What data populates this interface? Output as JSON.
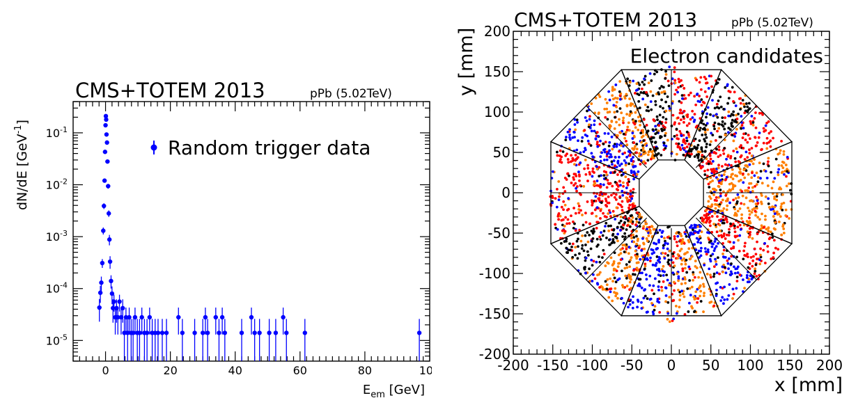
{
  "chart_data": [
    {
      "type": "scatter",
      "title": "CMS+TOTEM 2013",
      "subtitle": "pPb (5.02TeV)",
      "xlabel": "E_em [GeV]",
      "xlabel_main": "E",
      "xlabel_sub": "em",
      "xlabel_tail": " [GeV]",
      "ylabel": "dN/dE [GeV^-1]",
      "ylabel_main": "dN/dE [GeV",
      "ylabel_sup": "-1",
      "ylabel_tail": "]",
      "yscale": "log",
      "xlim": [
        -10,
        100
      ],
      "ylim": [
        4e-06,
        0.4
      ],
      "x_ticks": [
        0,
        20,
        40,
        60,
        80,
        100
      ],
      "x_tick_labels": [
        "0",
        "20",
        "40",
        "60",
        "80",
        "100"
      ],
      "y_ticks": [
        1e-05,
        0.0001,
        0.001,
        0.01,
        0.1
      ],
      "y_tick_base": "10",
      "y_tick_exps": [
        "-5",
        "-4",
        "-3",
        "-2",
        "-1"
      ],
      "legend": {
        "entries": [
          "Random trigger data"
        ],
        "position": "top-right"
      },
      "series": [
        {
          "name": "Random trigger data",
          "color": "#0000ff",
          "points": [
            [
              -1.9,
              4.3e-05,
              2e-05
            ],
            [
              -1.6,
              8.3e-05,
              3e-05
            ],
            [
              -1.3,
              0.00013,
              4e-05
            ],
            [
              -1.0,
              0.00031,
              6e-05
            ],
            [
              -0.7,
              0.0013,
              0.0002
            ],
            [
              -0.5,
              0.0039,
              0.0005
            ],
            [
              -0.3,
              0.012,
              0.001
            ],
            [
              -0.15,
              0.043,
              0.002
            ],
            [
              0.0,
              0.14,
              0.004
            ],
            [
              0.1,
              0.21,
              0.005
            ],
            [
              0.2,
              0.18,
              0.005
            ],
            [
              0.3,
              0.093,
              0.003
            ],
            [
              0.45,
              0.065,
              0.003
            ],
            [
              0.6,
              0.028,
              0.002
            ],
            [
              0.8,
              0.0094,
              0.001
            ],
            [
              1.0,
              0.0028,
              0.0004
            ],
            [
              1.2,
              0.00088,
              0.0002
            ],
            [
              1.4,
              0.00033,
              9e-05
            ],
            [
              1.7,
              0.00014,
              4e-05
            ],
            [
              2.0,
              8e-05,
              3e-05
            ],
            [
              2.3,
              4.2e-05,
              2e-05
            ],
            [
              2.6,
              5.6e-05,
              2e-05
            ],
            [
              3.0,
              2.8e-05,
              1.5e-05
            ],
            [
              3.4,
              4.2e-05,
              2e-05
            ],
            [
              3.8,
              2.8e-05,
              1.5e-05
            ],
            [
              4.3,
              5.6e-05,
              2e-05
            ],
            [
              4.8,
              2.8e-05,
              1.5e-05
            ],
            [
              5.3,
              4.2e-05,
              2e-05
            ],
            [
              5.8,
              1.4e-05,
              1.2e-05
            ],
            [
              6.3,
              2.8e-05,
              1.5e-05
            ],
            [
              6.8,
              1.4e-05,
              1.2e-05
            ],
            [
              7.3,
              2.8e-05,
              1.5e-05
            ],
            [
              7.9,
              1.4e-05,
              1.2e-05
            ],
            [
              8.5,
              1.4e-05,
              1.2e-05
            ],
            [
              9.1,
              2.8e-05,
              1.5e-05
            ],
            [
              9.8,
              1.4e-05,
              1.2e-05
            ],
            [
              10.5,
              1.4e-05,
              1.2e-05
            ],
            [
              11.2,
              2.8e-05,
              1.5e-05
            ],
            [
              12.0,
              1.4e-05,
              1.2e-05
            ],
            [
              12.8,
              1.4e-05,
              1.2e-05
            ],
            [
              13.6,
              2.8e-05,
              1.5e-05
            ],
            [
              14.4,
              1.4e-05,
              1.2e-05
            ],
            [
              15.3,
              1.4e-05,
              1.2e-05
            ],
            [
              16.2,
              1.4e-05,
              1.2e-05
            ],
            [
              17.5,
              1.4e-05,
              1.2e-05
            ],
            [
              18.8,
              1.4e-05,
              1.2e-05
            ],
            [
              22.5,
              2.8e-05,
              1.5e-05
            ],
            [
              23.7,
              1.4e-05,
              1.2e-05
            ],
            [
              27.5,
              1.4e-05,
              1.2e-05
            ],
            [
              30.0,
              1.4e-05,
              1.2e-05
            ],
            [
              30.8,
              2.8e-05,
              1.5e-05
            ],
            [
              31.5,
              1.4e-05,
              1.2e-05
            ],
            [
              34.0,
              2.8e-05,
              1.5e-05
            ],
            [
              35.0,
              1.4e-05,
              1.2e-05
            ],
            [
              36.0,
              2.8e-05,
              1.5e-05
            ],
            [
              36.8,
              1.4e-05,
              1.2e-05
            ],
            [
              42.0,
              1.4e-05,
              1.2e-05
            ],
            [
              45.0,
              2.8e-05,
              1.5e-05
            ],
            [
              46.0,
              1.4e-05,
              1.2e-05
            ],
            [
              47.5,
              1.4e-05,
              1.2e-05
            ],
            [
              50.5,
              1.4e-05,
              1.2e-05
            ],
            [
              52.5,
              1.4e-05,
              1.2e-05
            ],
            [
              54.8,
              2.8e-05,
              1.5e-05
            ],
            [
              55.8,
              1.4e-05,
              1.2e-05
            ],
            [
              61.5,
              1.4e-05,
              1.2e-05
            ],
            [
              96.8,
              1.4e-05,
              1.2e-05
            ]
          ]
        }
      ]
    },
    {
      "type": "scatter",
      "title": "CMS+TOTEM 2013",
      "subtitle": "pPb (5.02TeV)",
      "xlabel": "x [mm]",
      "ylabel": "y [mm]",
      "xlim": [
        -200,
        200
      ],
      "ylim": [
        -200,
        200
      ],
      "x_ticks": [
        -200,
        -150,
        -100,
        -50,
        0,
        50,
        100,
        150,
        200
      ],
      "x_tick_labels": [
        "-200",
        "-150",
        "-100",
        "-50",
        "0",
        "50",
        "100",
        "150",
        "200"
      ],
      "y_ticks": [
        -200,
        -150,
        -100,
        -50,
        0,
        50,
        100,
        150,
        200
      ],
      "y_tick_labels": [
        "-200",
        "-150",
        "-100",
        "-50",
        "0",
        "50",
        "100",
        "150",
        "200"
      ],
      "annotation": "Electron candidates",
      "geometry": {
        "inner_radius_mm": 44,
        "outer_radius_mm": 165,
        "octants": 8,
        "sectors": 16,
        "gap_half_width_mm": 6
      },
      "point_colors": [
        "#ff0000",
        "#ff7f00",
        "#000000",
        "#0000ff"
      ],
      "sector_colors": [
        "#ff7f00",
        "#ff0000",
        "#000000",
        "#ff0000",
        "#000000",
        "#ff7f00",
        "#0000ff",
        "#ff0000",
        "#ff0000",
        "#000000",
        "#ff7f00",
        "#0000ff",
        "#ff7f00",
        "#0000ff",
        "#ff0000",
        "#ff7f00"
      ]
    }
  ]
}
